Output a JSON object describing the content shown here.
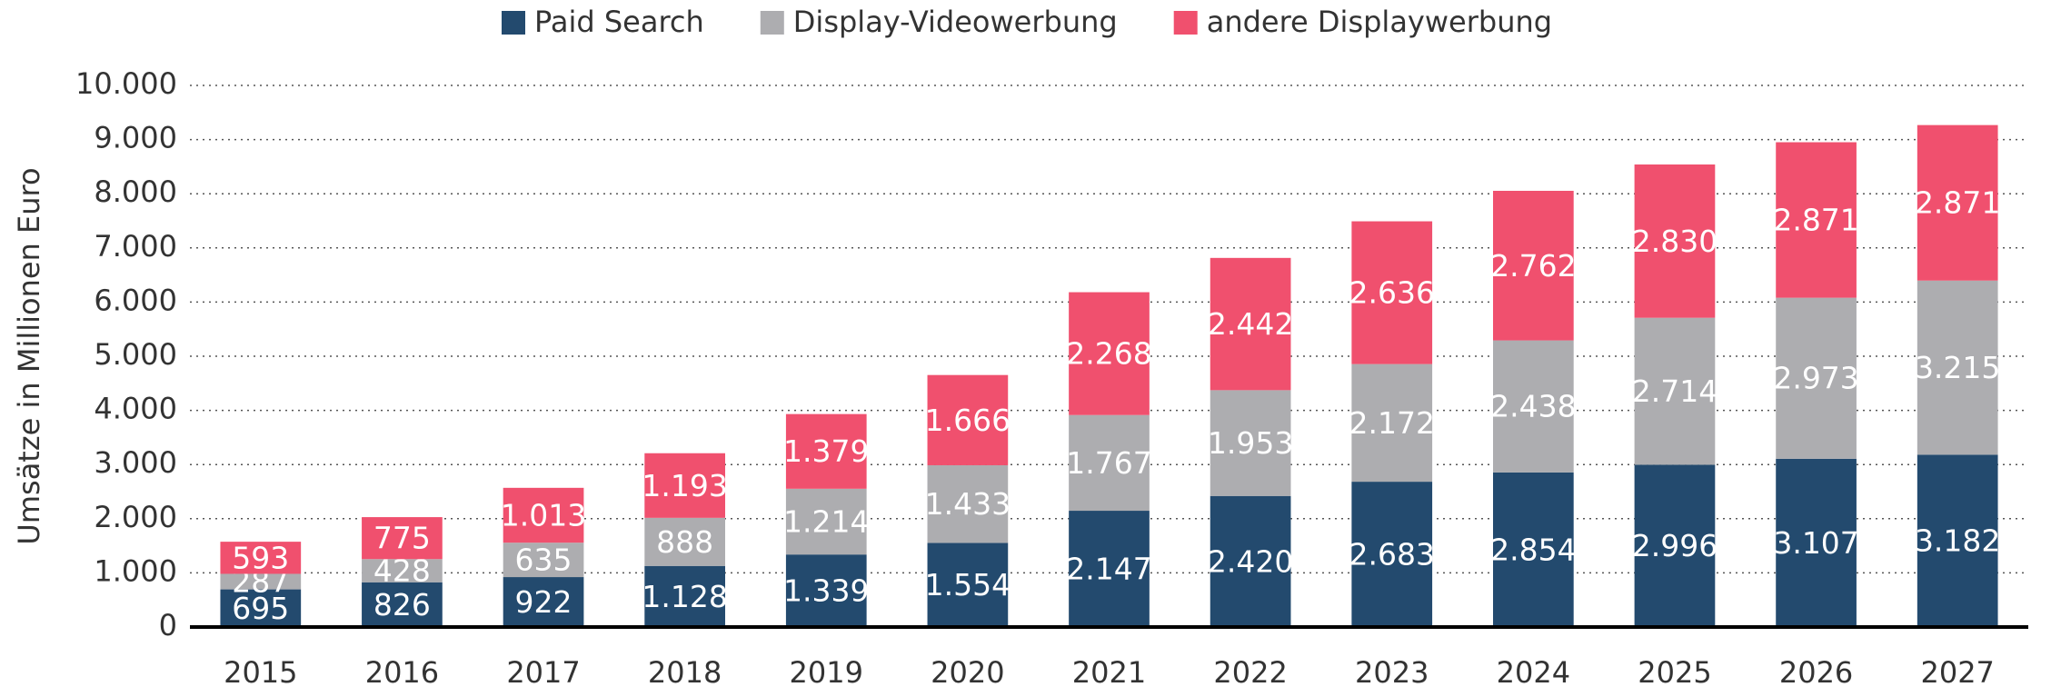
{
  "chart_data": {
    "type": "stacked_bar",
    "y_label": "Umsätze in Millionen Euro",
    "categories": [
      "2015",
      "2016",
      "2017",
      "2018",
      "2019",
      "2020",
      "2021",
      "2022",
      "2023",
      "2024",
      "2025",
      "2026",
      "2027"
    ],
    "series": [
      {
        "name": "Paid Search",
        "color": "#234a6e",
        "values": [
          695,
          826,
          922,
          1128,
          1339,
          1554,
          2147,
          2420,
          2683,
          2854,
          2996,
          3107,
          3182
        ],
        "value_labels": [
          "695",
          "826",
          "922",
          "1.128",
          "1.339",
          "1.554",
          "2.147",
          "2.420",
          "2.683",
          "2.854",
          "2.996",
          "3.107",
          "3.182"
        ]
      },
      {
        "name": "Display-Videowerbung",
        "color": "#adadb0",
        "values": [
          287,
          428,
          635,
          888,
          1214,
          1433,
          1767,
          1953,
          2172,
          2438,
          2714,
          2973,
          3215
        ],
        "value_labels": [
          "287",
          "428",
          "635",
          "888",
          "1.214",
          "1.433",
          "1.767",
          "1.953",
          "2.172",
          "2.438",
          "2.714",
          "2.973",
          "3.215"
        ]
      },
      {
        "name": "andere Displaywerbung",
        "color": "#f0506e",
        "values": [
          593,
          775,
          1013,
          1193,
          1379,
          1666,
          2268,
          2442,
          2636,
          2762,
          2830,
          2871,
          2871
        ],
        "value_labels": [
          "593",
          "775",
          "1.013",
          "1.193",
          "1.379",
          "1.666",
          "2.268",
          "2.442",
          "2.636",
          "2.762",
          "2.830",
          "2.871",
          "2.871"
        ]
      }
    ],
    "ylim": [
      0,
      10000
    ],
    "yticks": [
      0,
      {
        "value": 1000,
        "label": "1.000"
      },
      {
        "value": 2000,
        "label": "2.000"
      },
      {
        "value": 3000,
        "label": "3.000"
      },
      {
        "value": 4000,
        "label": "4.000"
      },
      {
        "value": 5000,
        "label": "5.000"
      },
      {
        "value": 6000,
        "label": "6.000"
      },
      {
        "value": 7000,
        "label": "7.000"
      },
      {
        "value": 8000,
        "label": "8.000"
      },
      {
        "value": 9000,
        "label": "9.000"
      },
      {
        "value": 10000,
        "label": "10.000"
      }
    ],
    "grid": true,
    "legend": "top"
  }
}
